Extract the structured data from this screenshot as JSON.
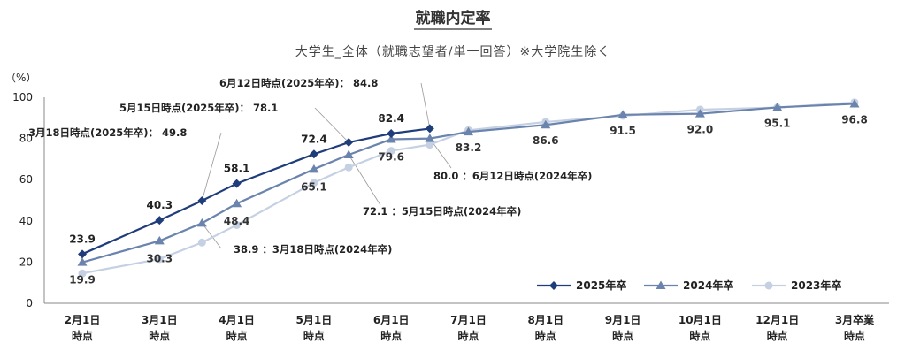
{
  "chart_data": {
    "type": "line",
    "title": "就職内定率",
    "subtitle": "大学生_全体（就職志望者/単一回答）※大学院生除く",
    "y_unit": "（%）",
    "ylim": [
      0,
      100
    ],
    "yticks": [
      0,
      20,
      40,
      60,
      80,
      100
    ],
    "grid": false,
    "legend_position": "bottom-right",
    "categories": [
      [
        "2月1日",
        "時点"
      ],
      [
        "3月1日",
        "時点"
      ],
      [
        "4月1日",
        "時点"
      ],
      [
        "5月1日",
        "時点"
      ],
      [
        "6月1日",
        "時点"
      ],
      [
        "7月1日",
        "時点"
      ],
      [
        "8月1日",
        "時点"
      ],
      [
        "9月1日",
        "時点"
      ],
      [
        "10月1日",
        "時点"
      ],
      [
        "12月1日",
        "時点"
      ],
      [
        "3月卒業",
        "時点"
      ]
    ],
    "series": [
      {
        "name": "2025年卒",
        "color": "#1f3d7a",
        "marker": "diamond",
        "points": [
          [
            0,
            23.9
          ],
          [
            1,
            40.3
          ],
          [
            1.55,
            49.8
          ],
          [
            2,
            58.1
          ],
          [
            3,
            72.4
          ],
          [
            3.45,
            78.1
          ],
          [
            4,
            82.4
          ],
          [
            4.5,
            84.8
          ]
        ],
        "labels": [
          {
            "index": 0,
            "text": "23.9"
          },
          {
            "index": 1,
            "text": "40.3"
          },
          {
            "index": 3,
            "text": "58.1"
          },
          {
            "index": 4,
            "text": "72.4"
          },
          {
            "index": 6,
            "text": "82.4"
          }
        ]
      },
      {
        "name": "2024年卒",
        "color": "#6b84ad",
        "marker": "triangle",
        "points": [
          [
            0,
            19.9
          ],
          [
            1,
            30.3
          ],
          [
            1.55,
            38.9
          ],
          [
            2,
            48.4
          ],
          [
            3,
            65.1
          ],
          [
            3.45,
            72.1
          ],
          [
            4,
            79.6
          ],
          [
            4.5,
            80.0
          ],
          [
            5,
            83.2
          ],
          [
            6,
            86.6
          ],
          [
            7,
            91.5
          ],
          [
            8,
            92.0
          ],
          [
            9,
            95.1
          ],
          [
            10,
            96.8
          ]
        ],
        "labels": [
          {
            "index": 0,
            "text": "19.9"
          },
          {
            "index": 1,
            "text": "30.3"
          },
          {
            "index": 3,
            "text": "48.4"
          },
          {
            "index": 4,
            "text": "65.1"
          },
          {
            "index": 6,
            "text": "79.6"
          },
          {
            "index": 8,
            "text": "83.2"
          },
          {
            "index": 9,
            "text": "86.6"
          },
          {
            "index": 10,
            "text": "91.5"
          },
          {
            "index": 11,
            "text": "92.0"
          },
          {
            "index": 12,
            "text": "95.1"
          },
          {
            "index": 13,
            "text": "96.8"
          }
        ]
      },
      {
        "name": "2023年卒",
        "color": "#c5d1e3",
        "marker": "circle",
        "points": [
          [
            0,
            14.5
          ],
          [
            1,
            21.5
          ],
          [
            1.55,
            29.5
          ],
          [
            2,
            38.0
          ],
          [
            3,
            58.5
          ],
          [
            3.45,
            66.0
          ],
          [
            4,
            74.0
          ],
          [
            4.5,
            77.0
          ],
          [
            5,
            84.0
          ],
          [
            6,
            88.0
          ],
          [
            7,
            91.0
          ],
          [
            8,
            94.0
          ],
          [
            9,
            95.0
          ],
          [
            10,
            97.5
          ]
        ],
        "labels": []
      }
    ],
    "annotations": [
      {
        "text": "6月12日時点(2025年卒)： 84.8"
      },
      {
        "text": "5月15日時点(2025年卒)： 78.1"
      },
      {
        "text": "3月18日時点(2025年卒)： 49.8"
      },
      {
        "text": "80.0 ：6月12日時点(2024年卒)"
      },
      {
        "text": "72.1 ：5月15日時点(2024年卒)"
      },
      {
        "text": "38.9 ：3月18日時点(2024年卒)"
      }
    ]
  }
}
